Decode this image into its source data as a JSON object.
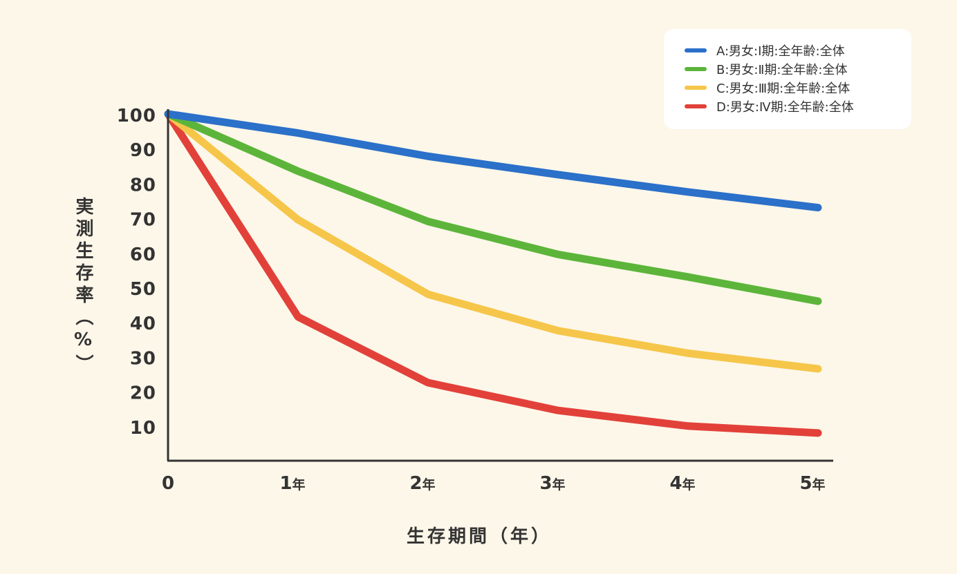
{
  "chart_data": {
    "type": "line",
    "title": "",
    "xlabel": "生存期間（年）",
    "ylabel": "実測生存率（%）",
    "x": [
      0,
      1,
      2,
      3,
      4,
      5
    ],
    "x_tick_labels": [
      {
        "num": "0",
        "unit": ""
      },
      {
        "num": "1",
        "unit": "年"
      },
      {
        "num": "2",
        "unit": "年"
      },
      {
        "num": "3",
        "unit": "年"
      },
      {
        "num": "4",
        "unit": "年"
      },
      {
        "num": "5",
        "unit": "年"
      }
    ],
    "y_ticks": [
      100,
      90,
      80,
      70,
      60,
      50,
      40,
      30,
      20,
      10
    ],
    "ylim": [
      0,
      100
    ],
    "xlim": [
      0,
      5
    ],
    "grid": false,
    "legend_position": "top-right",
    "series": [
      {
        "name": "A:男女:Ⅰ期:全年齢:全体",
        "color": "#2b70c9",
        "values": [
          100,
          94.5,
          87.8,
          82.5,
          77.5,
          73
        ]
      },
      {
        "name": "B:男女:Ⅱ期:全年齢:全体",
        "color": "#5cb53a",
        "values": [
          100,
          83.5,
          69,
          59.5,
          53,
          46
        ]
      },
      {
        "name": "C:男女:Ⅲ期:全年齢:全体",
        "color": "#f6c64a",
        "values": [
          100,
          69.5,
          48,
          37.5,
          31,
          26.5
        ]
      },
      {
        "name": "D:男女:Ⅳ期:全年齢:全体",
        "color": "#e2413a",
        "values": [
          100,
          41.5,
          22.5,
          14.5,
          10,
          8
        ]
      }
    ]
  }
}
